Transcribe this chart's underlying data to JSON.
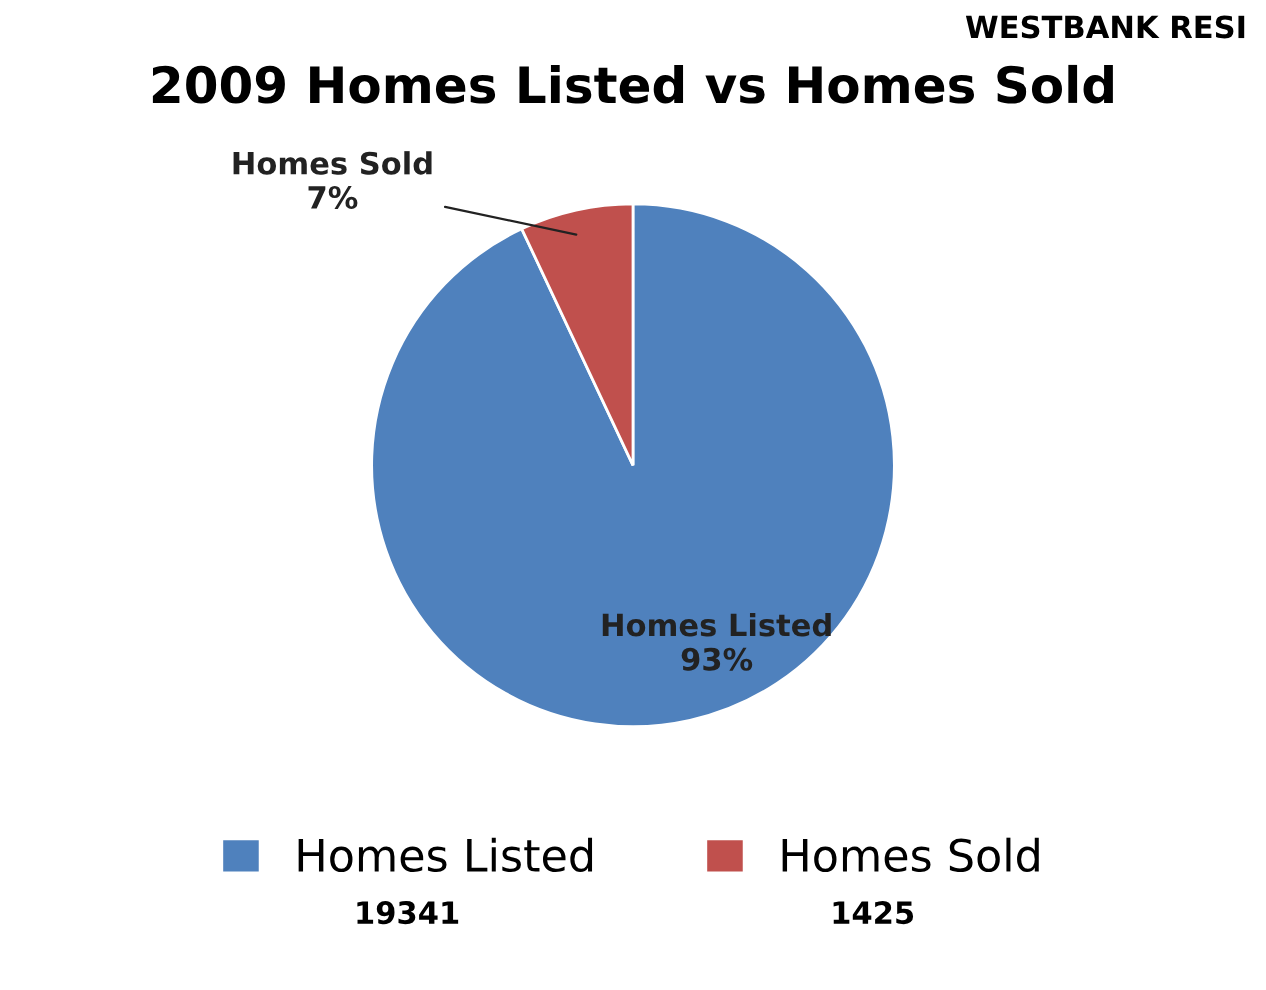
{
  "chart_data": {
    "type": "pie",
    "title": "2009 Homes Listed vs Homes Sold",
    "categories": [
      "Homes Listed",
      "Homes Sold"
    ],
    "values": [
      93,
      7
    ],
    "colors": [
      "#4f81bd",
      "#c0504d"
    ],
    "value_labels": [
      "93%",
      "7%"
    ],
    "legend": "bottom",
    "annotations": [
      "WESTBANK RESI",
      "19341",
      "1425"
    ]
  }
}
